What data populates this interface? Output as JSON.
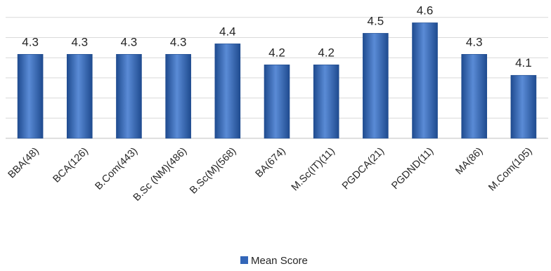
{
  "chart_data": {
    "type": "bar",
    "categories": [
      "BBA(48)",
      "BCA(126)",
      "B.Com(443)",
      "B.Sc (NM)(486)",
      "B.Sc(M)(568)",
      "BA(674)",
      "M.Sc(IT)(11)",
      "PGDCA(21)",
      "PGDND(11)",
      "MA(86)",
      "M.Com(105)"
    ],
    "series": [
      {
        "name": "Mean Score",
        "values": [
          4.3,
          4.3,
          4.3,
          4.3,
          4.4,
          4.2,
          4.2,
          4.5,
          4.6,
          4.3,
          4.1
        ],
        "labels": [
          "4.3",
          "4.3",
          "4.3",
          "4.3",
          "4.4",
          "4.2",
          "4.2",
          "4.5",
          "4.6",
          "4.3",
          "4.1"
        ]
      }
    ],
    "ylim": [
      3.5,
      4.75
    ],
    "grid": true,
    "legend_position": "bottom",
    "bar_color": "#3366b8",
    "bar_dark_color": "#1f4b8f",
    "bar_light_color": "#5a8bd6"
  }
}
